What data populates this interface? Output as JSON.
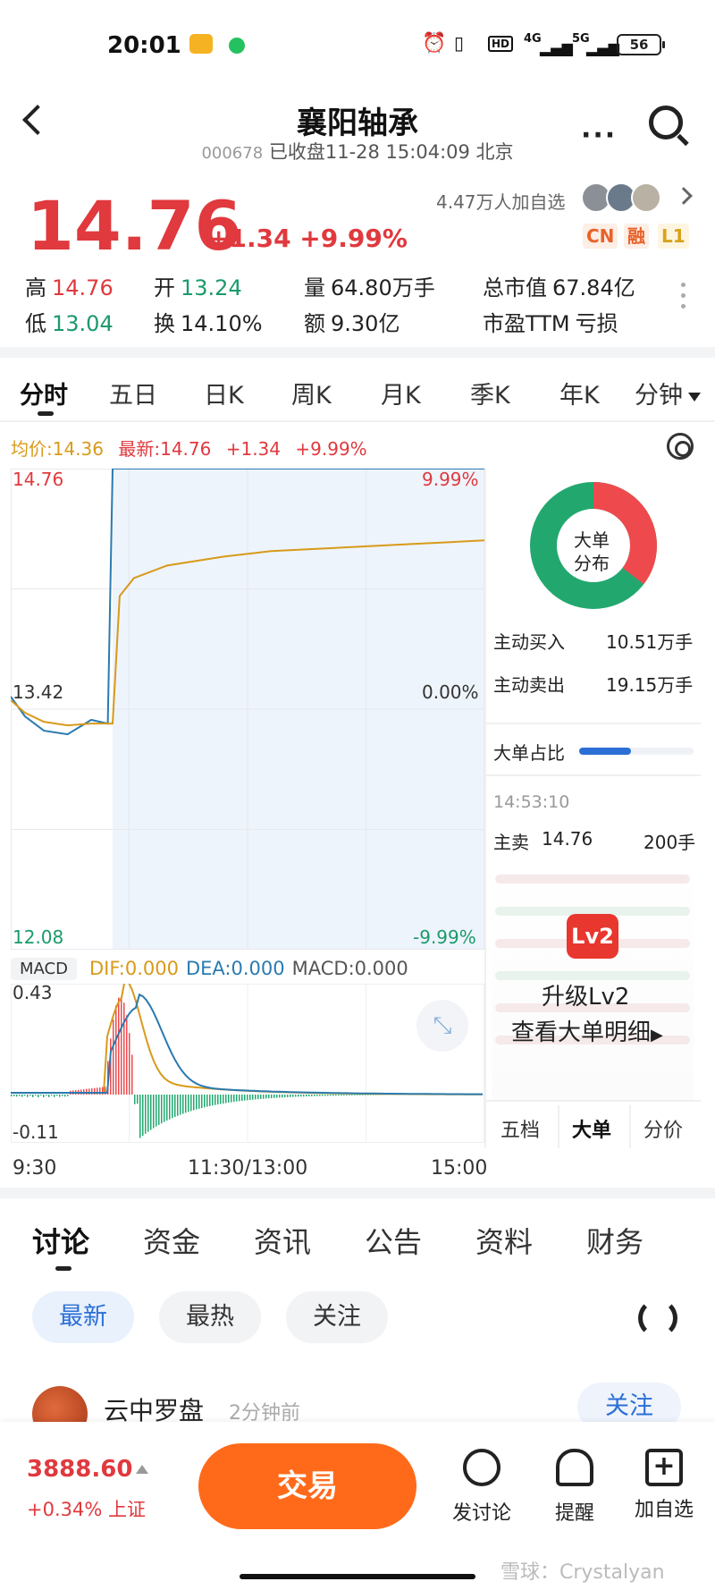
{
  "status_bar": {
    "time": "20:01",
    "network": "4G",
    "network2": "5G",
    "hd": "HD",
    "battery": "56"
  },
  "header": {
    "title": "襄阳轴承",
    "code": "000678",
    "status": "已收盘11-28 15:04:09 北京"
  },
  "quote": {
    "price": "14.76",
    "change": "+1.34",
    "change_pct": "+9.99%",
    "watchers": "4.47万人加自选",
    "badges": [
      "CN",
      "融",
      "L1"
    ],
    "stats": [
      {
        "label": "高",
        "value": "14.76",
        "tone": "red"
      },
      {
        "label": "开",
        "value": "13.24",
        "tone": "green"
      },
      {
        "label": "量",
        "value": "64.80万手",
        "tone": "plain"
      },
      {
        "label": "总市值",
        "value": "67.84亿",
        "tone": "plain"
      },
      {
        "label": "低",
        "value": "13.04",
        "tone": "green"
      },
      {
        "label": "换",
        "value": "14.10%",
        "tone": "plain"
      },
      {
        "label": "额",
        "value": "9.30亿",
        "tone": "plain"
      },
      {
        "label": "市盈TTM",
        "value": "亏损",
        "tone": "plain"
      }
    ]
  },
  "chart_tabs": [
    "分时",
    "五日",
    "日K",
    "周K",
    "月K",
    "季K",
    "年K",
    "分钟"
  ],
  "chart_info": {
    "avg": "均价:14.36",
    "latest": "最新:14.76",
    "change": "+1.34",
    "pct": "+9.99%"
  },
  "intraday": {
    "y_left": [
      "14.76",
      "13.42",
      "12.08"
    ],
    "y_right": [
      "9.99%",
      "0.00%",
      "-9.99%"
    ],
    "x_labels": [
      "9:30",
      "11:30/13:00",
      "15:00"
    ],
    "macd_label": "MACD",
    "dif": "DIF:0.000",
    "dea": "DEA:0.000",
    "macd": "MACD:0.000",
    "macd_max": "0.43",
    "macd_min": "-0.11"
  },
  "chart_data": {
    "type": "line",
    "x": [
      "9:30",
      "9:35",
      "9:40",
      "9:45",
      "9:50",
      "9:55",
      "10:00",
      "10:05",
      "10:10",
      "10:20",
      "10:40",
      "11:00",
      "11:30/13:00",
      "14:00",
      "15:00"
    ],
    "series": [
      {
        "values": [
          13.49,
          13.38,
          13.3,
          13.28,
          13.36,
          13.34,
          14.76,
          14.76,
          14.76,
          14.76,
          14.76,
          14.76,
          14.76,
          14.76,
          14.76
        ]
      },
      {
        "values": [
          13.47,
          13.4,
          13.35,
          13.33,
          13.34,
          13.34,
          13.34,
          14.05,
          14.15,
          14.22,
          14.27,
          14.3,
          14.32,
          14.34,
          14.36
        ]
      }
    ],
    "ylim": [
      12.08,
      14.76
    ],
    "xlabel": "",
    "ylabel": ""
  },
  "right_panel": {
    "donut_title_1": "大单",
    "donut_title_2": "分布",
    "buy_label": "主动买入",
    "buy_value": "10.51万手",
    "sell_label": "主动卖出",
    "sell_value": "19.15万手",
    "buy_share": 0.354,
    "ratio_label": "大单占比",
    "ratio_value": 0.45,
    "trade_time": "14:53:10",
    "trade_side": "主卖",
    "trade_price": "14.76",
    "trade_qty": "200手",
    "lv2_badge": "Lv2",
    "upgrade_1": "升级Lv2",
    "upgrade_2": "查看大单明细",
    "mini_tabs": [
      "五档",
      "大单",
      "分价"
    ]
  },
  "lower_tabs": [
    "讨论",
    "资金",
    "资讯",
    "公告",
    "资料",
    "财务"
  ],
  "pills": [
    "最新",
    "最热",
    "关注"
  ],
  "post": {
    "user": "云中罗盘",
    "time": "2分钟前",
    "follow": "关注"
  },
  "bottom_bar": {
    "index_value": "3888.60",
    "index_change": "+0.34% 上证",
    "trade": "交易",
    "items": [
      "发讨论",
      "提醒",
      "加自选"
    ]
  },
  "watermark": "雪球：Crystalyan",
  "colors": {
    "red": "#e0393e",
    "green": "#1a9a6a",
    "blue": "#2b6fd6",
    "orange": "#ff6a1a",
    "avg_line": "#d89a1a",
    "price_line": "#2a7ab0"
  }
}
